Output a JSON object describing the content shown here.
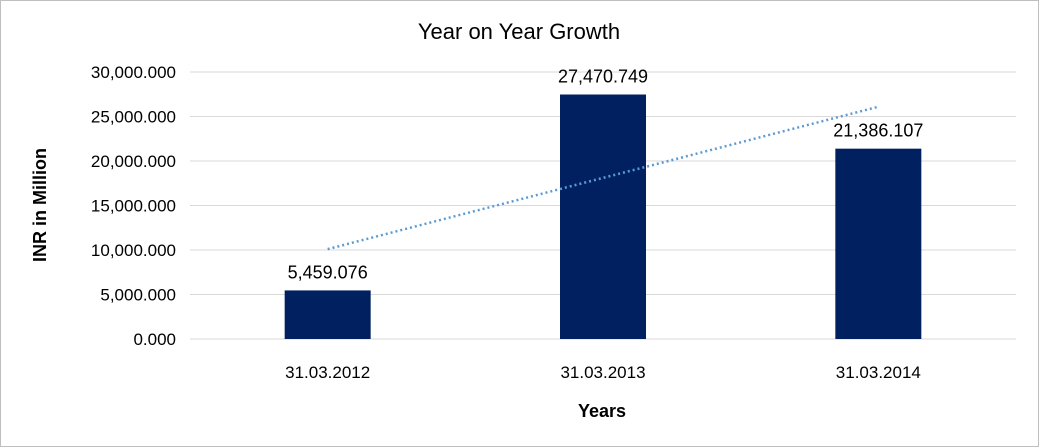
{
  "chart_data": {
    "type": "bar",
    "title": "Year on Year Growth",
    "xlabel": "Years",
    "ylabel": "INR in Million",
    "categories": [
      "31.03.2012",
      "31.03.2013",
      "31.03.2014"
    ],
    "values": [
      5459.076,
      27470.749,
      21386.107
    ],
    "value_labels": [
      "5,459.076",
      "27,470.749",
      "21,386.107"
    ],
    "ylim": [
      0,
      30000
    ],
    "yticks": [
      0,
      5000,
      10000,
      15000,
      20000,
      25000,
      30000
    ],
    "ytick_labels": [
      "0.000",
      "5,000.000",
      "10,000.000",
      "15,000.000",
      "20,000.000",
      "25,000.000",
      "30,000.000"
    ],
    "trendline": {
      "type": "linear",
      "style": "dotted",
      "start": 10100,
      "end": 26100
    },
    "grid": true,
    "legend": "none",
    "colors": {
      "bar": "#002060",
      "trendline": "#5b9bd5",
      "grid": "#d9d9d9"
    }
  }
}
